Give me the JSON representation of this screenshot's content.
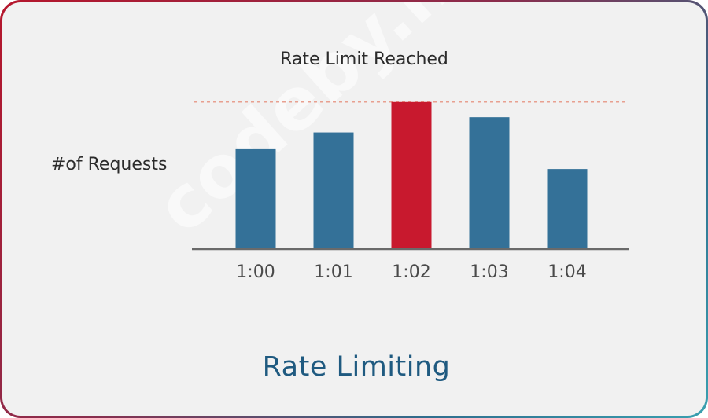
{
  "chart_data": {
    "type": "bar",
    "title": "Rate Limiting",
    "ylabel": "#of Requests",
    "xlabel": "",
    "categories": [
      "1:00",
      "1:01",
      "1:02",
      "1:03",
      "1:04"
    ],
    "values": [
      65,
      76,
      96,
      86,
      52
    ],
    "ylim": [
      0,
      100
    ],
    "limit": {
      "value": 96,
      "label": "Rate Limit Reached"
    },
    "highlight_index": 2,
    "grid": false,
    "colors": {
      "bar": "#347198",
      "highlight": "#c8192e",
      "limit_line": "#e8a090",
      "axis": "#6a6a6a"
    }
  },
  "watermark": "codeby.net"
}
